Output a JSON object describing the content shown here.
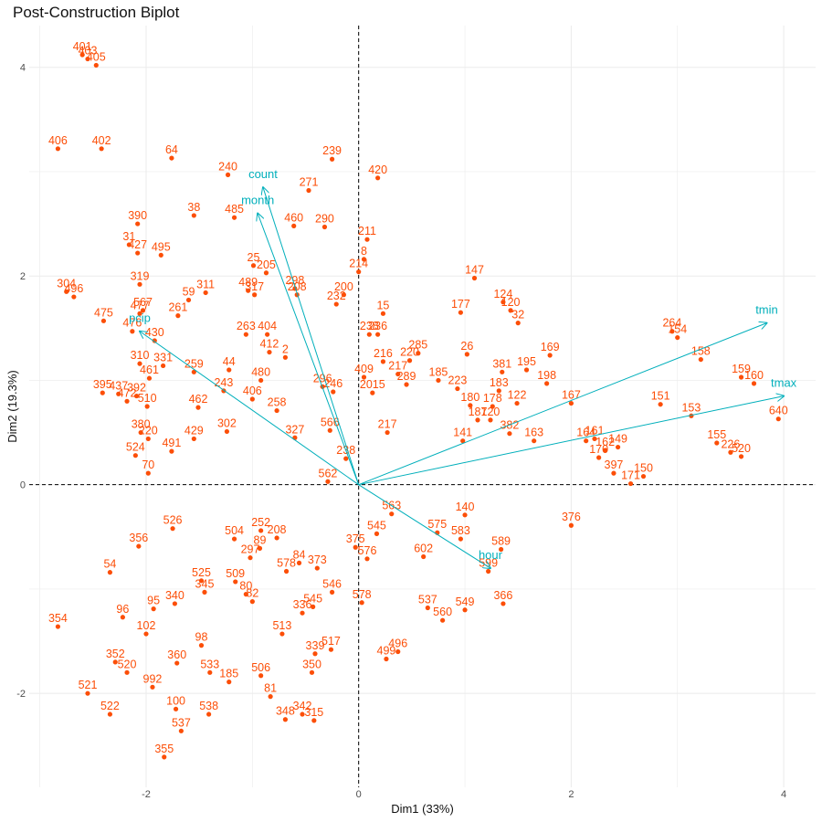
{
  "chart_data": {
    "type": "scatter",
    "title": "Post-Construction Biplot",
    "xlabel": "Dim1 (33%)",
    "ylabel": "Dim2 (19.3%)",
    "xlim": [
      -3.1,
      4.3
    ],
    "ylim": [
      -2.9,
      4.4
    ],
    "xticks": [
      -2,
      0,
      2,
      4
    ],
    "yticks": [
      -2,
      0,
      2,
      4
    ],
    "grid": true,
    "legend": "none",
    "colors": {
      "individuals": "#fc4e07",
      "variables": "#00afbb",
      "reference": "#000000",
      "grid": "#ebebeb"
    },
    "individuals": [
      {
        "label": "401",
        "x": -2.6,
        "y": 4.12
      },
      {
        "label": "403",
        "x": -2.55,
        "y": 4.08
      },
      {
        "label": "405",
        "x": -2.47,
        "y": 4.02
      },
      {
        "label": "406",
        "x": -2.83,
        "y": 3.22
      },
      {
        "label": "402",
        "x": -2.42,
        "y": 3.22
      },
      {
        "label": "64",
        "x": -1.76,
        "y": 3.13
      },
      {
        "label": "239",
        "x": -0.25,
        "y": 3.12
      },
      {
        "label": "240",
        "x": -1.23,
        "y": 2.97
      },
      {
        "label": "420",
        "x": 0.18,
        "y": 2.94
      },
      {
        "label": "271",
        "x": -0.47,
        "y": 2.82
      },
      {
        "label": "38",
        "x": -1.55,
        "y": 2.58
      },
      {
        "label": "485",
        "x": -1.17,
        "y": 2.56
      },
      {
        "label": "390",
        "x": -2.08,
        "y": 2.5
      },
      {
        "label": "460",
        "x": -0.61,
        "y": 2.48
      },
      {
        "label": "290",
        "x": -0.32,
        "y": 2.47
      },
      {
        "label": "211",
        "x": 0.08,
        "y": 2.35
      },
      {
        "label": "31",
        "x": -2.16,
        "y": 2.3
      },
      {
        "label": "427",
        "x": -2.08,
        "y": 2.22
      },
      {
        "label": "495",
        "x": -1.86,
        "y": 2.2
      },
      {
        "label": "8",
        "x": 0.05,
        "y": 2.16
      },
      {
        "label": "25",
        "x": -0.99,
        "y": 2.1
      },
      {
        "label": "205",
        "x": -0.87,
        "y": 2.03
      },
      {
        "label": "214",
        "x": 0,
        "y": 2.04
      },
      {
        "label": "147",
        "x": 1.09,
        "y": 1.98
      },
      {
        "label": "319",
        "x": -2.06,
        "y": 1.92
      },
      {
        "label": "304",
        "x": -2.75,
        "y": 1.85
      },
      {
        "label": "496",
        "x": -2.68,
        "y": 1.8
      },
      {
        "label": "311",
        "x": -1.44,
        "y": 1.84
      },
      {
        "label": "489",
        "x": -1.04,
        "y": 1.86
      },
      {
        "label": "317",
        "x": -0.98,
        "y": 1.82
      },
      {
        "label": "298",
        "x": -0.6,
        "y": 1.88
      },
      {
        "label": "208",
        "x": -0.58,
        "y": 1.82
      },
      {
        "label": "200",
        "x": -0.14,
        "y": 1.82
      },
      {
        "label": "232",
        "x": -0.21,
        "y": 1.73
      },
      {
        "label": "59",
        "x": -1.6,
        "y": 1.77
      },
      {
        "label": "124",
        "x": 1.36,
        "y": 1.75
      },
      {
        "label": "120",
        "x": 1.43,
        "y": 1.67
      },
      {
        "label": "477",
        "x": -2.06,
        "y": 1.64
      },
      {
        "label": "567",
        "x": -2.03,
        "y": 1.67
      },
      {
        "label": "261",
        "x": -1.7,
        "y": 1.62
      },
      {
        "label": "15",
        "x": 0.23,
        "y": 1.64
      },
      {
        "label": "177",
        "x": 0.96,
        "y": 1.65
      },
      {
        "label": "32",
        "x": 1.5,
        "y": 1.55
      },
      {
        "label": "475",
        "x": -2.4,
        "y": 1.57
      },
      {
        "label": "476",
        "x": -2.13,
        "y": 1.47
      },
      {
        "label": "263",
        "x": -1.06,
        "y": 1.44
      },
      {
        "label": "404",
        "x": -0.86,
        "y": 1.44
      },
      {
        "label": "264",
        "x": 2.95,
        "y": 1.47
      },
      {
        "label": "154",
        "x": 3.0,
        "y": 1.41
      },
      {
        "label": "158",
        "x": 3.22,
        "y": 1.2
      },
      {
        "label": "238",
        "x": 0.1,
        "y": 1.44
      },
      {
        "label": "236",
        "x": 0.18,
        "y": 1.44
      },
      {
        "label": "285",
        "x": 0.56,
        "y": 1.26
      },
      {
        "label": "169",
        "x": 1.8,
        "y": 1.24
      },
      {
        "label": "26",
        "x": 1.02,
        "y": 1.25
      },
      {
        "label": "430",
        "x": -1.92,
        "y": 1.38
      },
      {
        "label": "412",
        "x": -0.84,
        "y": 1.27
      },
      {
        "label": "2",
        "x": -0.69,
        "y": 1.22
      },
      {
        "label": "220",
        "x": 0.48,
        "y": 1.19
      },
      {
        "label": "310",
        "x": -2.06,
        "y": 1.16
      },
      {
        "label": "331",
        "x": -1.84,
        "y": 1.14
      },
      {
        "label": "259",
        "x": -1.55,
        "y": 1.08
      },
      {
        "label": "44",
        "x": -1.22,
        "y": 1.1
      },
      {
        "label": "216",
        "x": 0.23,
        "y": 1.18
      },
      {
        "label": "195",
        "x": 1.58,
        "y": 1.1
      },
      {
        "label": "381",
        "x": 1.35,
        "y": 1.08
      },
      {
        "label": "159",
        "x": 3.6,
        "y": 1.03
      },
      {
        "label": "160",
        "x": 3.72,
        "y": 0.97
      },
      {
        "label": "461",
        "x": -1.97,
        "y": 1.02
      },
      {
        "label": "480",
        "x": -0.92,
        "y": 1.0
      },
      {
        "label": "409",
        "x": 0.05,
        "y": 1.03
      },
      {
        "label": "217",
        "x": 0.37,
        "y": 1.06
      },
      {
        "label": "185",
        "x": 0.75,
        "y": 1.0
      },
      {
        "label": "198",
        "x": 1.77,
        "y": 0.97
      },
      {
        "label": "640",
        "x": 3.95,
        "y": 0.63
      },
      {
        "label": "395",
        "x": -2.41,
        "y": 0.88
      },
      {
        "label": "437",
        "x": -2.26,
        "y": 0.87
      },
      {
        "label": "472",
        "x": -2.18,
        "y": 0.8
      },
      {
        "label": "392",
        "x": -2.09,
        "y": 0.85
      },
      {
        "label": "243",
        "x": -1.27,
        "y": 0.9
      },
      {
        "label": "296",
        "x": -0.34,
        "y": 0.94
      },
      {
        "label": "246",
        "x": -0.24,
        "y": 0.89
      },
      {
        "label": "2015",
        "x": 0.13,
        "y": 0.88
      },
      {
        "label": "289",
        "x": 0.45,
        "y": 0.96
      },
      {
        "label": "223",
        "x": 0.93,
        "y": 0.92
      },
      {
        "label": "183",
        "x": 1.32,
        "y": 0.9
      },
      {
        "label": "510",
        "x": -1.99,
        "y": 0.75
      },
      {
        "label": "462",
        "x": -1.51,
        "y": 0.74
      },
      {
        "label": "406b",
        "x": -1.0,
        "y": 0.82
      },
      {
        "label": "258",
        "x": -0.77,
        "y": 0.71
      },
      {
        "label": "180",
        "x": 1.05,
        "y": 0.76
      },
      {
        "label": "178",
        "x": 1.26,
        "y": 0.75
      },
      {
        "label": "122",
        "x": 1.49,
        "y": 0.78
      },
      {
        "label": "167",
        "x": 2.0,
        "y": 0.78
      },
      {
        "label": "151",
        "x": 2.84,
        "y": 0.77
      },
      {
        "label": "153",
        "x": 3.13,
        "y": 0.66
      },
      {
        "label": "187",
        "x": 1.12,
        "y": 0.62
      },
      {
        "label": "120b",
        "x": 1.24,
        "y": 0.62
      },
      {
        "label": "382",
        "x": 1.42,
        "y": 0.49
      },
      {
        "label": "380",
        "x": -2.05,
        "y": 0.5
      },
      {
        "label": "220b",
        "x": -1.98,
        "y": 0.44
      },
      {
        "label": "429",
        "x": -1.55,
        "y": 0.44
      },
      {
        "label": "302",
        "x": -1.24,
        "y": 0.51
      },
      {
        "label": "566",
        "x": -0.27,
        "y": 0.52
      },
      {
        "label": "217b",
        "x": 0.27,
        "y": 0.5
      },
      {
        "label": "141",
        "x": 0.98,
        "y": 0.42
      },
      {
        "label": "163",
        "x": 1.65,
        "y": 0.42
      },
      {
        "label": "155",
        "x": 3.37,
        "y": 0.4
      },
      {
        "label": "164",
        "x": 2.14,
        "y": 0.42
      },
      {
        "label": "161",
        "x": 2.22,
        "y": 0.44
      },
      {
        "label": "149",
        "x": 2.44,
        "y": 0.36
      },
      {
        "label": "491",
        "x": -1.76,
        "y": 0.32
      },
      {
        "label": "327",
        "x": -0.6,
        "y": 0.45
      },
      {
        "label": "238b",
        "x": -0.12,
        "y": 0.25
      },
      {
        "label": "226",
        "x": 3.5,
        "y": 0.31
      },
      {
        "label": "520",
        "x": 3.6,
        "y": 0.27
      },
      {
        "label": "524",
        "x": -2.1,
        "y": 0.28
      },
      {
        "label": "170",
        "x": 2.26,
        "y": 0.26
      },
      {
        "label": "70",
        "x": -1.98,
        "y": 0.11
      },
      {
        "label": "150",
        "x": 2.68,
        "y": 0.08
      },
      {
        "label": "397",
        "x": 2.4,
        "y": 0.11
      },
      {
        "label": "171",
        "x": 2.56,
        "y": 0.01
      },
      {
        "label": "162",
        "x": 2.32,
        "y": 0.33
      },
      {
        "label": "356",
        "x": -2.07,
        "y": -0.59
      },
      {
        "label": "526",
        "x": -1.75,
        "y": -0.42
      },
      {
        "label": "376",
        "x": 2.0,
        "y": -0.39
      },
      {
        "label": "140",
        "x": 1.0,
        "y": -0.29
      },
      {
        "label": "562",
        "x": -0.29,
        "y": 0.03
      },
      {
        "label": "563",
        "x": 0.31,
        "y": -0.28
      },
      {
        "label": "373",
        "x": -0.39,
        "y": -0.8
      },
      {
        "label": "84",
        "x": -0.56,
        "y": -0.75
      },
      {
        "label": "602",
        "x": 0.61,
        "y": -0.69
      },
      {
        "label": "589",
        "x": 1.34,
        "y": -0.62
      },
      {
        "label": "599",
        "x": 1.22,
        "y": -0.83
      },
      {
        "label": "366",
        "x": 1.36,
        "y": -1.14
      },
      {
        "label": "549",
        "x": 1.0,
        "y": -1.2
      },
      {
        "label": "560",
        "x": 0.79,
        "y": -1.3
      },
      {
        "label": "537b",
        "x": 0.65,
        "y": -1.18
      },
      {
        "label": "578",
        "x": 0.03,
        "y": -1.13
      },
      {
        "label": "546",
        "x": -0.25,
        "y": -1.03
      },
      {
        "label": "545",
        "x": -0.43,
        "y": -1.17
      },
      {
        "label": "336",
        "x": -0.53,
        "y": -1.23
      },
      {
        "label": "525",
        "x": -1.48,
        "y": -0.92
      },
      {
        "label": "509",
        "x": -1.16,
        "y": -0.93
      },
      {
        "label": "345",
        "x": -1.45,
        "y": -1.03
      },
      {
        "label": "80",
        "x": -1.06,
        "y": -1.05
      },
      {
        "label": "82",
        "x": -1.0,
        "y": -1.12
      },
      {
        "label": "54",
        "x": -2.34,
        "y": -0.84
      },
      {
        "label": "95",
        "x": -1.93,
        "y": -1.19
      },
      {
        "label": "96",
        "x": -2.22,
        "y": -1.27
      },
      {
        "label": "340",
        "x": -1.73,
        "y": -1.14
      },
      {
        "label": "354",
        "x": -2.83,
        "y": -1.36
      },
      {
        "label": "102",
        "x": -2.0,
        "y": -1.43
      },
      {
        "label": "513",
        "x": -0.72,
        "y": -1.43
      },
      {
        "label": "98",
        "x": -1.48,
        "y": -1.54
      },
      {
        "label": "339",
        "x": -0.41,
        "y": -1.62
      },
      {
        "label": "517",
        "x": -0.26,
        "y": -1.58
      },
      {
        "label": "496b",
        "x": 0.37,
        "y": -1.6
      },
      {
        "label": "499",
        "x": 0.26,
        "y": -1.67
      },
      {
        "label": "352",
        "x": -2.29,
        "y": -1.7
      },
      {
        "label": "360",
        "x": -1.71,
        "y": -1.71
      },
      {
        "label": "350",
        "x": -0.44,
        "y": -1.8
      },
      {
        "label": "520b",
        "x": -2.18,
        "y": -1.8
      },
      {
        "label": "533",
        "x": -1.4,
        "y": -1.8
      },
      {
        "label": "506",
        "x": -0.92,
        "y": -1.83
      },
      {
        "label": "521",
        "x": -2.55,
        "y": -2.0
      },
      {
        "label": "992",
        "x": -1.94,
        "y": -1.94
      },
      {
        "label": "185",
        "x": -1.22,
        "y": -1.89
      },
      {
        "label": "522",
        "x": -2.34,
        "y": -2.2
      },
      {
        "label": "100",
        "x": -1.72,
        "y": -2.15
      },
      {
        "label": "81",
        "x": -0.83,
        "y": -2.03
      },
      {
        "label": "538",
        "x": -1.41,
        "y": -2.2
      },
      {
        "label": "342",
        "x": -0.53,
        "y": -2.2
      },
      {
        "label": "348",
        "x": -0.69,
        "y": -2.25
      },
      {
        "label": "315",
        "x": -0.42,
        "y": -2.26
      },
      {
        "label": "537",
        "x": -1.67,
        "y": -2.36
      },
      {
        "label": "355",
        "x": -1.83,
        "y": -2.61
      },
      {
        "label": "578b",
        "x": -0.68,
        "y": -0.83
      },
      {
        "label": "89",
        "x": -0.93,
        "y": -0.61
      },
      {
        "label": "297",
        "x": -1.02,
        "y": -0.7
      },
      {
        "label": "504",
        "x": -1.17,
        "y": -0.52
      },
      {
        "label": "208b",
        "x": -0.77,
        "y": -0.51
      },
      {
        "label": "252",
        "x": -0.92,
        "y": -0.44
      },
      {
        "label": "375",
        "x": -0.03,
        "y": -0.6
      },
      {
        "label": "545b",
        "x": 0.17,
        "y": -0.47
      },
      {
        "label": "576",
        "x": 0.08,
        "y": -0.71
      },
      {
        "label": "575",
        "x": 0.74,
        "y": -0.46
      },
      {
        "label": "583",
        "x": 0.96,
        "y": -0.52
      }
    ],
    "variables": [
      {
        "label": "count",
        "x": -0.9,
        "y": 2.85
      },
      {
        "label": "month",
        "x": -0.95,
        "y": 2.6
      },
      {
        "label": "pcip",
        "x": -2.06,
        "y": 1.47
      },
      {
        "label": "tmin",
        "x": 3.84,
        "y": 1.55
      },
      {
        "label": "tmax",
        "x": 4.0,
        "y": 0.85
      },
      {
        "label": "hour",
        "x": 1.24,
        "y": -0.8
      }
    ]
  }
}
